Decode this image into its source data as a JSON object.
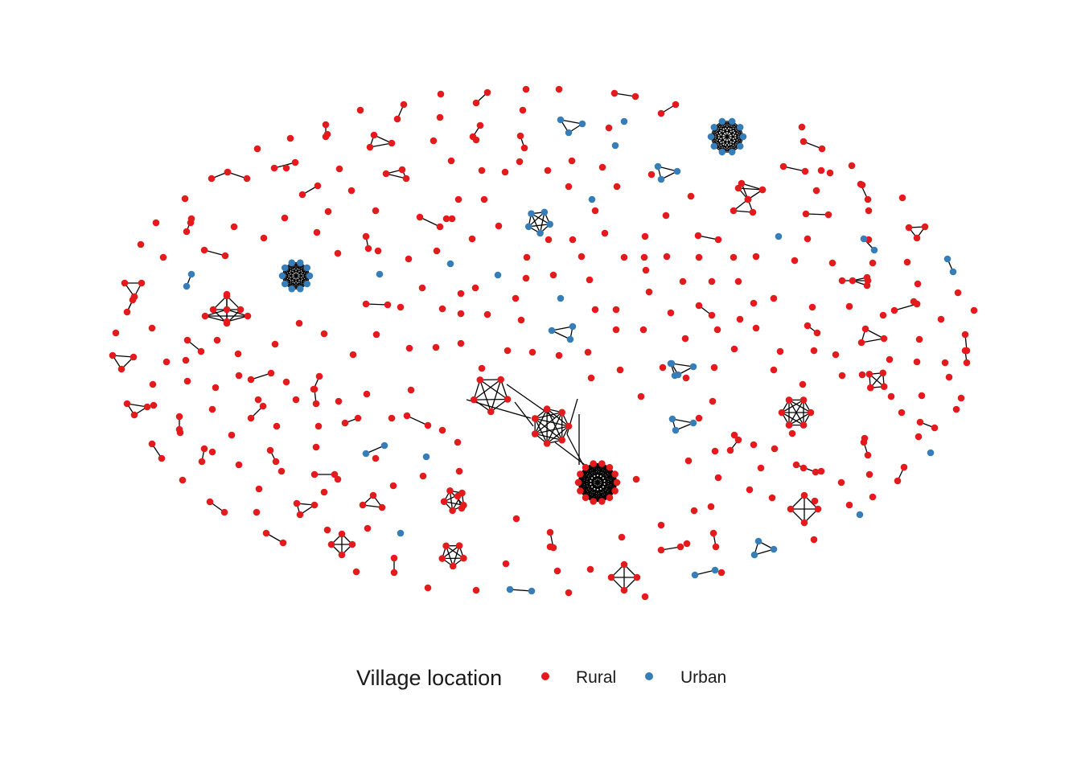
{
  "legend": {
    "title": "Village location",
    "items": [
      {
        "label": "Rural",
        "color": "#E41A1C"
      },
      {
        "label": "Urban",
        "color": "#377EB8"
      }
    ]
  },
  "colors": {
    "edge": "#000000",
    "rural": "#E41A1C",
    "urban": "#377EB8"
  }
}
